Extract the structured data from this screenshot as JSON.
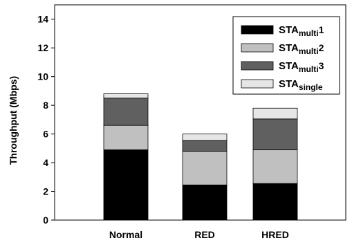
{
  "chart_data": {
    "type": "bar",
    "stacked": true,
    "categories": [
      "Normal",
      "RED",
      "HRED"
    ],
    "series": [
      {
        "name": "STA",
        "sub": "multi",
        "suffix": "1",
        "color": "#000000",
        "values": [
          4.9,
          2.45,
          2.55
        ]
      },
      {
        "name": "STA",
        "sub": "multi",
        "suffix": "2",
        "color": "#c0c0c0",
        "values": [
          1.7,
          2.35,
          2.35
        ]
      },
      {
        "name": "STA",
        "sub": "multi",
        "suffix": "3",
        "color": "#606060",
        "values": [
          1.9,
          0.75,
          2.15
        ]
      },
      {
        "name": "STA",
        "sub": "single",
        "suffix": "",
        "color": "#e6e6e6",
        "values": [
          0.3,
          0.45,
          0.75
        ]
      }
    ],
    "title": "",
    "xlabel": "",
    "ylabel": "Throughput (Mbps)",
    "ylim": [
      0,
      15
    ],
    "yticks": [
      "0",
      "2",
      "4",
      "6",
      "8",
      "10",
      "12",
      "14"
    ],
    "grid": false,
    "legend_position": "top-right"
  }
}
